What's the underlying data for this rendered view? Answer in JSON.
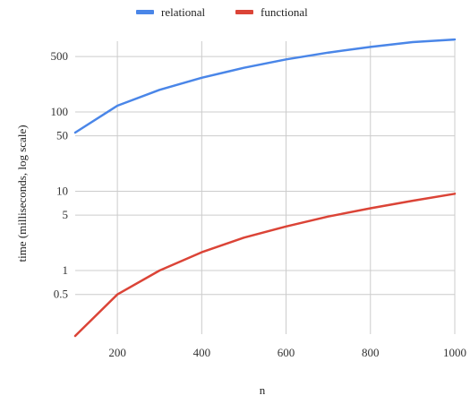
{
  "chart_data": {
    "type": "line",
    "title": "",
    "xlabel": "n",
    "ylabel": "time (milliseconds, log scale)",
    "x": [
      100,
      200,
      300,
      400,
      500,
      600,
      700,
      800,
      900,
      1000
    ],
    "xlim": [
      100,
      1000
    ],
    "ylim": [
      0.15,
      800
    ],
    "yscale": "log",
    "grid": true,
    "legend_position": "top",
    "x_ticks": [
      200,
      400,
      600,
      800,
      1000
    ],
    "x_tick_labels": [
      "200",
      "400",
      "600",
      "800",
      "1000"
    ],
    "y_ticks": [
      0.5,
      1,
      5,
      10,
      50,
      100,
      500
    ],
    "y_tick_labels": [
      "0.5",
      "1",
      "5",
      "10",
      "50",
      "100",
      "500"
    ],
    "series": [
      {
        "name": "relational",
        "color": "#4a86e8",
        "values": [
          55,
          120,
          190,
          270,
          360,
          460,
          560,
          660,
          760,
          820
        ]
      },
      {
        "name": "functional",
        "color": "#db4437",
        "values": [
          0.15,
          0.5,
          1.0,
          1.7,
          2.6,
          3.6,
          4.8,
          6.1,
          7.6,
          9.3
        ]
      }
    ]
  }
}
